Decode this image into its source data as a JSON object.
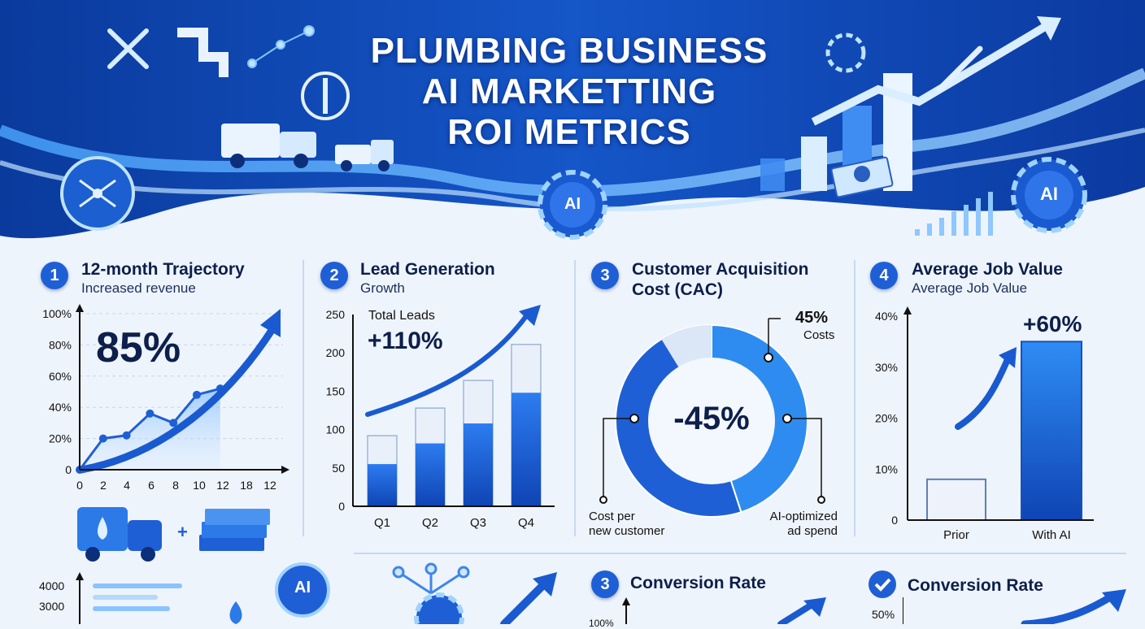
{
  "header": {
    "title_lines": [
      "PLUMBING BUSINESS",
      "AI MARKETTING",
      "ROI METRICS"
    ],
    "ai_badge": "AI"
  },
  "sections": [
    {
      "number": "1",
      "title": "12-month Trajectory",
      "subtitle": "Increased revenue",
      "highlight": "85%"
    },
    {
      "number": "2",
      "title": "Lead Generation",
      "subtitle": "Growth",
      "inner_label": "Total Leads",
      "highlight": "+110%"
    },
    {
      "number": "3",
      "title_line1": "Customer Acquisition",
      "title_line2": "Cost (CAC)",
      "highlight": "-45%",
      "callout_value": "45%",
      "callout_label": "Costs",
      "label_left_1": "Cost per",
      "label_left_2": "new customer",
      "label_right_1": "AI-optimized",
      "label_right_2": "ad spend"
    },
    {
      "number": "4",
      "title": "Average Job Value",
      "subtitle": "Average Job Value",
      "highlight": "+60%"
    }
  ],
  "bottom": {
    "ticks": [
      "4000",
      "3000"
    ],
    "ai_badge": "AI",
    "card3_number": "3",
    "card3_title": "Conversion Rate",
    "card3_tick": "100%",
    "card4_title": "Conversion Rate",
    "card4_tick": "50%"
  },
  "colors": {
    "primary": "#1f5fd6",
    "dark_navy": "#0d1f4a",
    "light_bar": "#e8eef8",
    "accent": "#2e8cf0"
  },
  "chart_data": [
    {
      "type": "line",
      "title": "12-month Trajectory",
      "x": [
        0,
        2,
        4,
        6,
        8,
        10,
        12
      ],
      "x_ticks": [
        "0",
        "2",
        "4",
        "6",
        "8",
        "10",
        "12",
        "18",
        "12"
      ],
      "y": [
        0,
        20,
        22,
        36,
        30,
        48,
        52
      ],
      "ylim": [
        0,
        100
      ],
      "y_ticks": [
        "0",
        "20%",
        "40%",
        "60%",
        "80%",
        "100%"
      ],
      "grid": true
    },
    {
      "type": "bar",
      "title": "Lead Generation",
      "categories": [
        "Q1",
        "Q2",
        "Q3",
        "Q4"
      ],
      "series": [
        {
          "values": [
            55,
            82,
            108,
            148
          ]
        },
        {
          "values": [
            92,
            128,
            164,
            211
          ]
        }
      ],
      "ylim": [
        0,
        250
      ],
      "y_ticks": [
        "0",
        "50",
        "100",
        "150",
        "200",
        "250"
      ]
    },
    {
      "type": "pie",
      "title": "Customer Acquisition Cost (CAC)",
      "values": [
        55,
        45
      ],
      "center_label": "-45%"
    },
    {
      "type": "bar",
      "title": "Average Job Value",
      "categories": [
        "Prior",
        "With AI"
      ],
      "values": [
        8,
        35
      ],
      "ylim": [
        0,
        40
      ],
      "y_ticks": [
        "0",
        "10%",
        "20%",
        "30%",
        "40%"
      ]
    }
  ]
}
